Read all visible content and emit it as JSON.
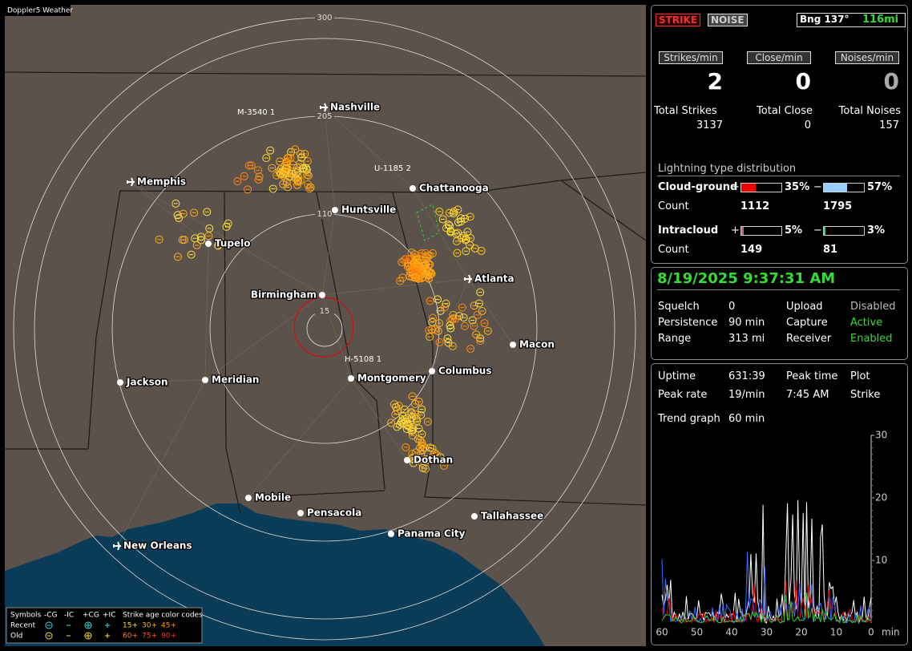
{
  "map": {
    "title": "Doppler5 Weather",
    "range_rings": [
      "300",
      "205",
      "110",
      "15"
    ],
    "cities": [
      "Nashville",
      "Memphis",
      "Chattanooga",
      "Huntsville",
      "Tupelo",
      "Atlanta",
      "Birmingham",
      "Macon",
      "Jackson",
      "Meridian",
      "Montgomery",
      "Columbus",
      "Dothan",
      "Mobile",
      "Pensacola",
      "Tallahassee",
      "Panama City",
      "New Orleans"
    ],
    "sensor_labels": [
      "M-3540 1",
      "U-1185 2",
      "H-5108 1"
    ]
  },
  "legend": {
    "header": [
      "Symbols",
      "-CG",
      "-IC",
      "+CG",
      "+IC",
      "Strike age color codes"
    ],
    "rows": [
      {
        "label": "Recent",
        "ages": [
          "15+",
          "30+",
          "45+"
        ]
      },
      {
        "label": "Old",
        "ages": [
          "60+",
          "75+",
          "90+"
        ]
      }
    ]
  },
  "status": {
    "buttons": [
      "STRIKE",
      "NOISE"
    ],
    "bearing": "Bng 137°",
    "distance": "116mi"
  },
  "rates": [
    {
      "label": "Strikes/min",
      "value": 2
    },
    {
      "label": "Close/min",
      "value": 0
    },
    {
      "label": "Noises/min",
      "value": 0
    }
  ],
  "totals": [
    {
      "label": "Total Strikes",
      "value": 3137
    },
    {
      "label": "Total Close",
      "value": 0
    },
    {
      "label": "Total Noises",
      "value": 157
    }
  ],
  "distribution": {
    "title": "Lightning type distribution",
    "count_label": "Count",
    "plus_sign": "+",
    "minus_sign": "−",
    "types": [
      {
        "name": "Cloud-ground",
        "plus": {
          "value": 35,
          "label": "35%"
        },
        "minus": {
          "value": 57,
          "label": "57%"
        },
        "plus_count": 1112,
        "minus_count": 1795
      },
      {
        "name": "Intracloud",
        "plus": {
          "value": 5,
          "label": "5%"
        },
        "minus": {
          "value": 3,
          "label": "3%"
        },
        "plus_count": 149,
        "minus_count": 81
      }
    ]
  },
  "clock": "8/19/2025 9:37:31 AM",
  "settings": [
    [
      "Squelch",
      "0"
    ],
    [
      "Persistence",
      "90 min"
    ],
    [
      "Range",
      "313 mi"
    ]
  ],
  "services": [
    [
      "Upload",
      "Disabled"
    ],
    [
      "Capture",
      "Active"
    ],
    [
      "Receiver",
      "Enabled"
    ]
  ],
  "stats": {
    "rows": [
      [
        "Uptime",
        "631:39",
        "Peak time",
        "Plot"
      ],
      [
        "Peak rate",
        "19/min",
        "7:45 AM",
        "Strike"
      ]
    ],
    "trend_label": "Trend graph",
    "trend_window": "60 min"
  },
  "trend": {
    "ylim": [
      0,
      30
    ],
    "yticks": [
      10,
      20,
      30
    ],
    "xlim": [
      60,
      0
    ],
    "xticks": [
      60,
      50,
      40,
      30,
      20,
      10,
      0
    ],
    "xlabel": "min"
  }
}
